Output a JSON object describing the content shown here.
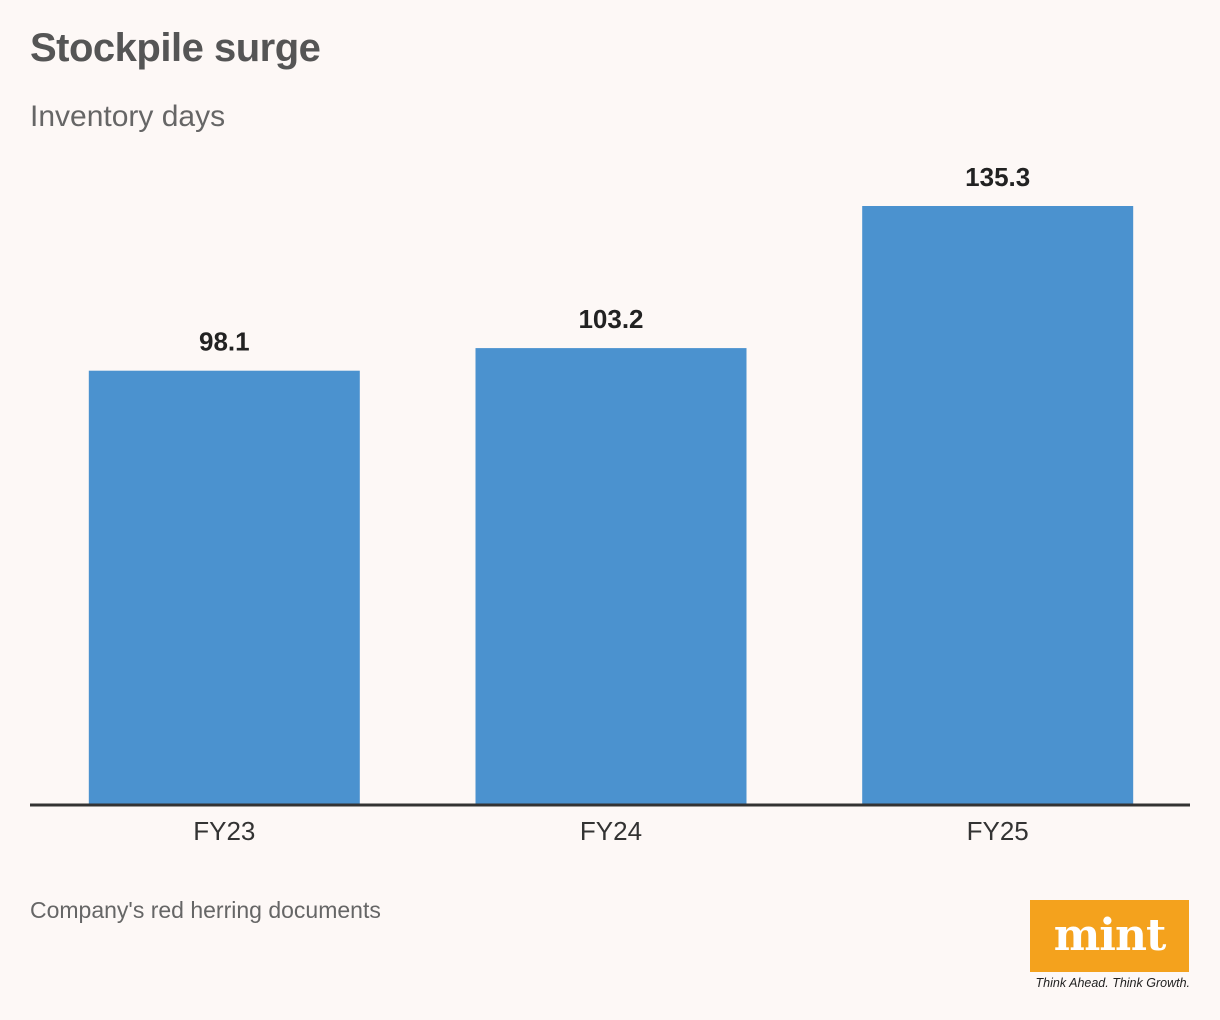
{
  "title": "Stockpile surge",
  "subtitle": "Inventory days",
  "source": "Company's red herring documents",
  "brand": {
    "logo_text": "mint",
    "tagline": "Think Ahead. Think Growth.",
    "color": "#f4a21d"
  },
  "colors": {
    "bar": "#4b92cf",
    "background": "#fdf8f6",
    "axis": "#333333"
  },
  "chart_data": {
    "type": "bar",
    "title": "Stockpile surge",
    "subtitle": "Inventory days",
    "categories": [
      "FY23",
      "FY24",
      "FY25"
    ],
    "values": [
      98.1,
      103.2,
      135.3
    ],
    "value_labels": [
      "98.1",
      "103.2",
      "135.3"
    ],
    "xlabel": "",
    "ylabel": "",
    "ylim": [
      0,
      135.3
    ],
    "grid": false,
    "legend": "none"
  }
}
